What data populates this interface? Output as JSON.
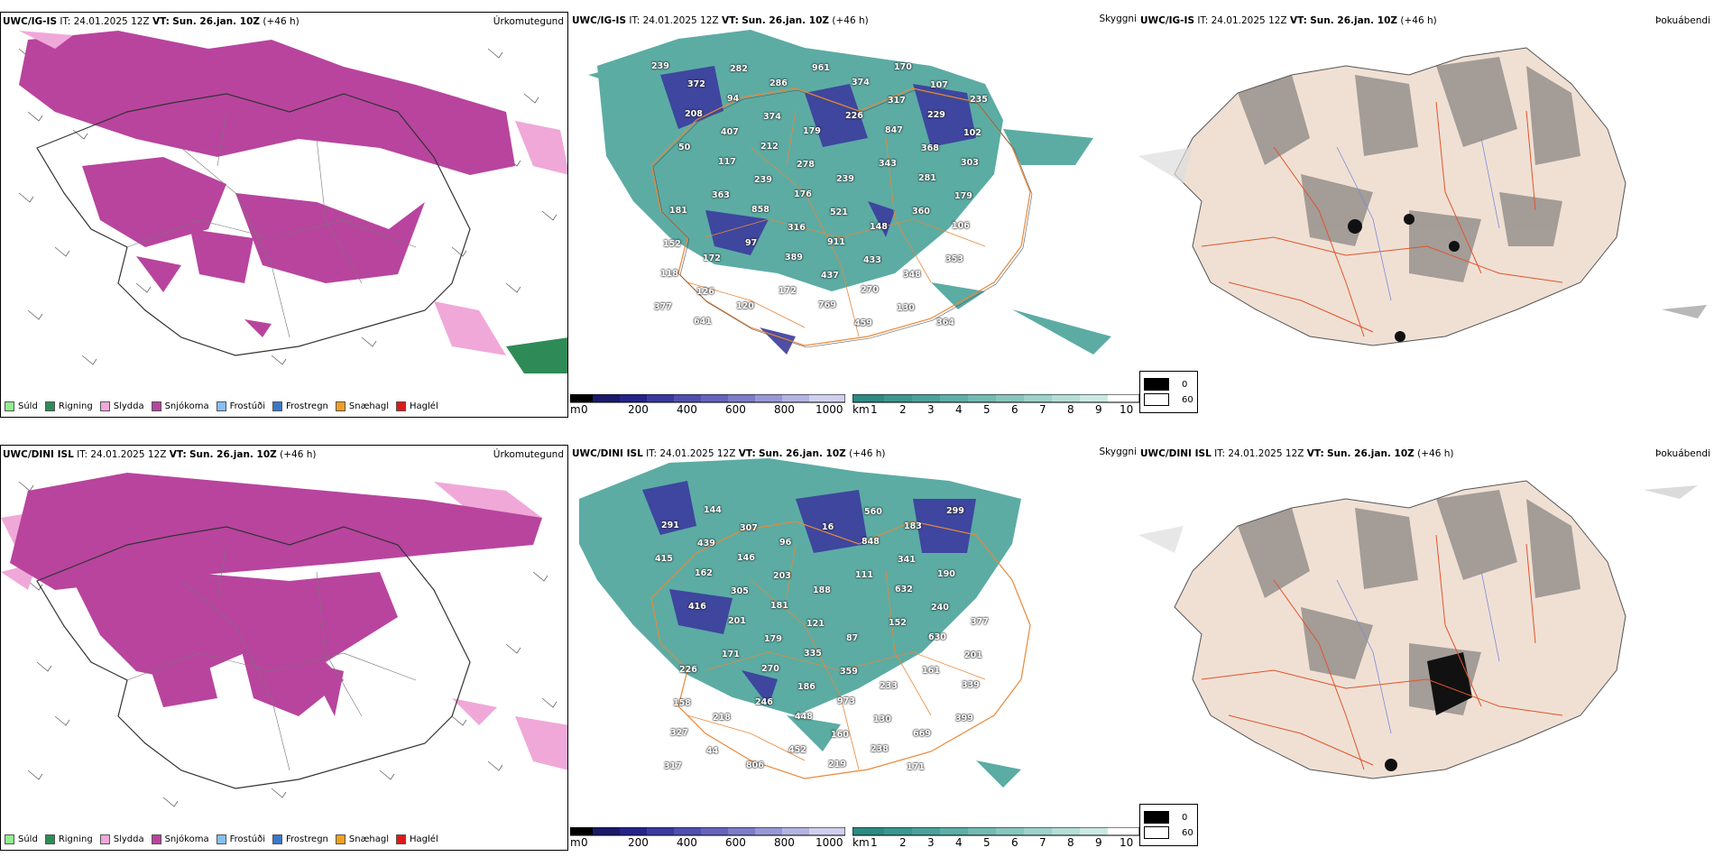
{
  "rows": [
    {
      "model": "UWC/IG-IS",
      "it_label": "IT:",
      "it_value": "24.01.2025 12Z",
      "vt_label": "VT:",
      "vt_value": "Sun. 26.jan. 10Z",
      "lead": "(+46 h)",
      "p1_title": "Úrkomutegund",
      "p2_title": "Skyggni",
      "p3_title": "Þokuábendi",
      "vis_labels": [
        "239",
        "208",
        "117",
        "858",
        "389",
        "769",
        "374",
        "847",
        "281",
        "106",
        "118",
        "641",
        "94",
        "212",
        "176",
        "911",
        "270",
        "170",
        "229",
        "303",
        "181",
        "172",
        "120",
        "286",
        "179",
        "239",
        "148",
        "348",
        "364",
        "235",
        "50",
        "363",
        "97",
        "172",
        "961",
        "226",
        "343",
        "360",
        "353",
        "377",
        "372",
        "407",
        "239",
        "316",
        "437",
        "459",
        "317",
        "368",
        "179",
        "152",
        "126",
        "282",
        "374",
        "278",
        "521",
        "433",
        "130",
        "107",
        "102"
      ]
    },
    {
      "model": "UWC/DINI ISL",
      "it_label": "IT:",
      "it_value": "24.01.2025 12Z",
      "vt_label": "VT:",
      "vt_value": "Sun. 26.jan. 10Z",
      "lead": "(+46 h)",
      "p1_title": "Úrkomutegund",
      "p2_title": "Skyggni",
      "p3_title": "Þokuábendi",
      "vis_labels": [
        "291",
        "162",
        "201",
        "270",
        "448",
        "219",
        "848",
        "632",
        "630",
        "339",
        "327",
        "144",
        "146",
        "181",
        "335",
        "973",
        "238",
        "183",
        "190",
        "377",
        "226",
        "218",
        "806",
        "96",
        "188",
        "87",
        "233",
        "669",
        "299",
        "415",
        "416",
        "171",
        "246",
        "452",
        "16",
        "111",
        "152",
        "161",
        "399",
        "317",
        "439",
        "305",
        "179",
        "186",
        "160",
        "560",
        "341",
        "240",
        "201",
        "158",
        "44",
        "307",
        "203",
        "121",
        "359",
        "130",
        "171"
      ]
    }
  ],
  "precip_legend": [
    {
      "label": "Súld",
      "color": "#90ee90"
    },
    {
      "label": "Rigning",
      "color": "#2e8b57"
    },
    {
      "label": "Slydda",
      "color": "#f0a8d8"
    },
    {
      "label": "Snjókoma",
      "color": "#b8449e"
    },
    {
      "label": "Frostúði",
      "color": "#87bff0"
    },
    {
      "label": "Frostregn",
      "color": "#3a78c8"
    },
    {
      "label": "Snæhagl",
      "color": "#f0a020"
    },
    {
      "label": "Haglél",
      "color": "#e01818"
    }
  ],
  "height_scale": {
    "unit": "m",
    "ticks": [
      "0",
      "200",
      "400",
      "600",
      "800",
      "1000"
    ]
  },
  "km_scale": {
    "unit": "km",
    "ticks": [
      "1",
      "2",
      "3",
      "4",
      "5",
      "6",
      "7",
      "8",
      "9",
      "10"
    ]
  },
  "fog_legend": {
    "values": [
      "0",
      "60"
    ]
  },
  "colors": {
    "snow": "#b8449e",
    "sleet": "#f0a8d8",
    "rain": "#2e8b57",
    "teal": "#3f9e94",
    "blue": "#3b3b9e",
    "orange": "#e8883a",
    "land": "#f0e0d4",
    "road": "#e0542a"
  }
}
